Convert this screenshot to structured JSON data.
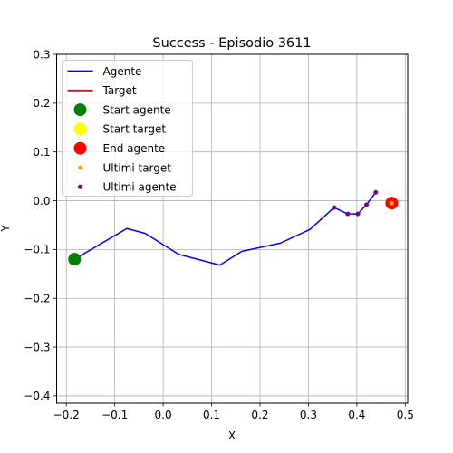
{
  "chart_data": {
    "type": "line",
    "title": "Success - Episodio 3611",
    "xlabel": "X",
    "ylabel": "Y",
    "xlim": [
      -0.22,
      0.505
    ],
    "ylim": [
      -0.415,
      0.3
    ],
    "xticks": [
      -0.2,
      -0.1,
      0.0,
      0.1,
      0.2,
      0.3,
      0.4,
      0.5
    ],
    "xtick_labels": [
      "−0.2",
      "−0.1",
      "0.0",
      "0.1",
      "0.2",
      "0.3",
      "0.4",
      "0.5"
    ],
    "yticks": [
      0.3,
      0.2,
      0.1,
      0.0,
      -0.1,
      -0.2,
      -0.3,
      -0.4
    ],
    "ytick_labels": [
      "0.3",
      "0.2",
      "0.1",
      "0.0",
      "−0.1",
      "−0.2",
      "−0.3",
      "−0.4"
    ],
    "grid": true,
    "legend_position": "top-left",
    "series": [
      {
        "name": "Agente",
        "kind": "line",
        "color": "#0000ff",
        "x": [
          -0.183,
          -0.075,
          -0.037,
          0.032,
          0.117,
          0.162,
          0.242,
          0.303,
          0.353,
          0.381,
          0.402,
          0.42,
          0.439
        ],
        "y": [
          -0.12,
          -0.057,
          -0.067,
          -0.11,
          -0.132,
          -0.104,
          -0.087,
          -0.059,
          -0.014,
          -0.027,
          -0.027,
          -0.008,
          0.017
        ]
      },
      {
        "name": "Target",
        "kind": "line",
        "color": "#ff0000",
        "x": [
          0.472
        ],
        "y": [
          -0.005
        ]
      },
      {
        "name": "Start agente",
        "kind": "marker",
        "color": "#008000",
        "size": "large",
        "x": [
          -0.183
        ],
        "y": [
          -0.12
        ]
      },
      {
        "name": "Start target",
        "kind": "marker",
        "color": "#ffff00",
        "size": "large",
        "x": [
          0.472
        ],
        "y": [
          -0.005
        ]
      },
      {
        "name": "End agente",
        "kind": "marker",
        "color": "#ff0000",
        "size": "large",
        "x": [
          0.472
        ],
        "y": [
          -0.005
        ]
      },
      {
        "name": "Ultimi target",
        "kind": "marker",
        "color": "#ffa500",
        "size": "small",
        "x": [
          0.472
        ],
        "y": [
          -0.005
        ]
      },
      {
        "name": "Ultimi agente",
        "kind": "marker",
        "color": "#800080",
        "size": "small",
        "x": [
          0.353,
          0.381,
          0.402,
          0.42,
          0.439
        ],
        "y": [
          -0.014,
          -0.027,
          -0.027,
          -0.008,
          0.017
        ]
      }
    ]
  }
}
